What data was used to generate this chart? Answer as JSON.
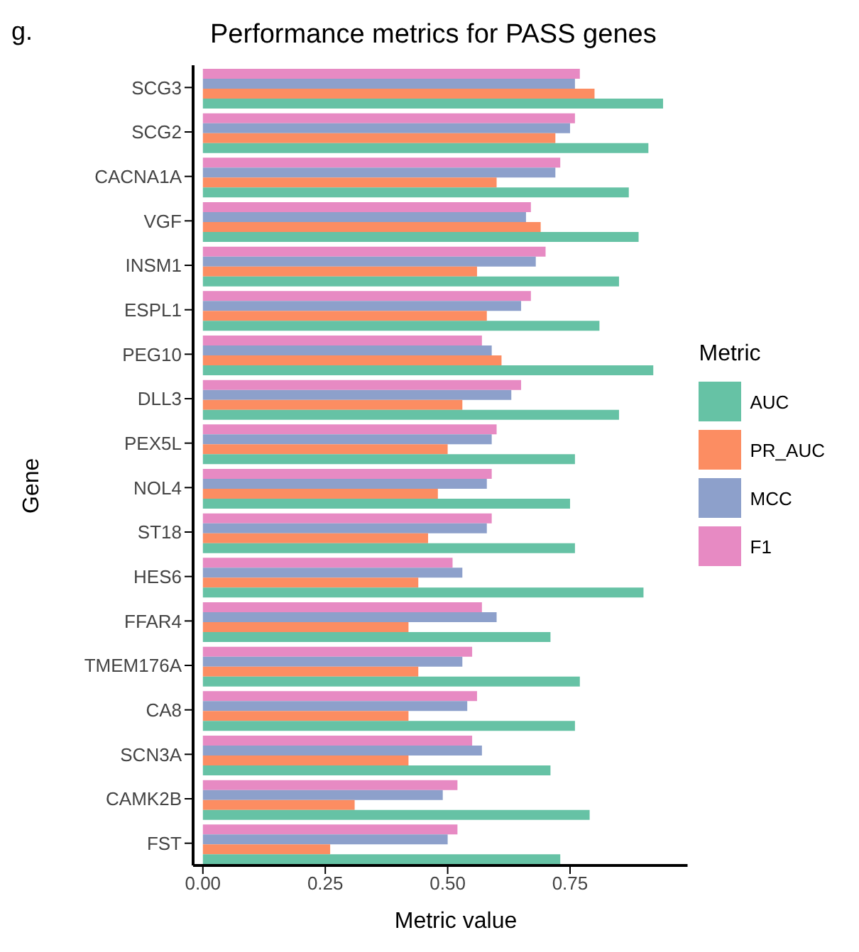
{
  "chart_data": {
    "type": "bar",
    "orientation": "horizontal",
    "title": "Performance metrics for PASS genes",
    "xlabel": "Metric value",
    "ylabel": "Gene",
    "legend_title": "Metric",
    "legend": "right",
    "annotations": [
      "g."
    ],
    "categories": [
      "SCG3",
      "SCG2",
      "CACNA1A",
      "VGF",
      "INSM1",
      "ESPL1",
      "PEG10",
      "DLL3",
      "PEX5L",
      "NOL4",
      "ST18",
      "HES6",
      "FFAR4",
      "TMEM176A",
      "CA8",
      "SCN3A",
      "CAMK2B",
      "FST"
    ],
    "xlim": [
      -0.02,
      0.99
    ],
    "xticks": [
      {
        "value": 0,
        "label": "0.00"
      },
      {
        "value": 0.25,
        "label": "0.25"
      },
      {
        "value": 0.5,
        "label": "0.50"
      },
      {
        "value": 0.75,
        "label": "0.75"
      }
    ],
    "series": [
      {
        "name": "AUC",
        "color": "#66c2a5",
        "values": [
          0.94,
          0.91,
          0.87,
          0.89,
          0.85,
          0.81,
          0.92,
          0.85,
          0.76,
          0.75,
          0.76,
          0.9,
          0.71,
          0.77,
          0.76,
          0.71,
          0.79,
          0.73
        ]
      },
      {
        "name": "PR_AUC",
        "color": "#fc8d62",
        "values": [
          0.8,
          0.72,
          0.6,
          0.69,
          0.56,
          0.58,
          0.61,
          0.53,
          0.5,
          0.48,
          0.46,
          0.44,
          0.42,
          0.44,
          0.42,
          0.42,
          0.31,
          0.26
        ]
      },
      {
        "name": "MCC",
        "color": "#8da0cb",
        "values": [
          0.76,
          0.75,
          0.72,
          0.66,
          0.68,
          0.65,
          0.59,
          0.63,
          0.59,
          0.58,
          0.58,
          0.53,
          0.6,
          0.53,
          0.54,
          0.57,
          0.49,
          0.5
        ]
      },
      {
        "name": "F1",
        "color": "#e78ac3",
        "values": [
          0.77,
          0.76,
          0.73,
          0.67,
          0.7,
          0.67,
          0.57,
          0.65,
          0.6,
          0.59,
          0.59,
          0.51,
          0.57,
          0.55,
          0.56,
          0.55,
          0.52,
          0.52
        ]
      }
    ]
  }
}
